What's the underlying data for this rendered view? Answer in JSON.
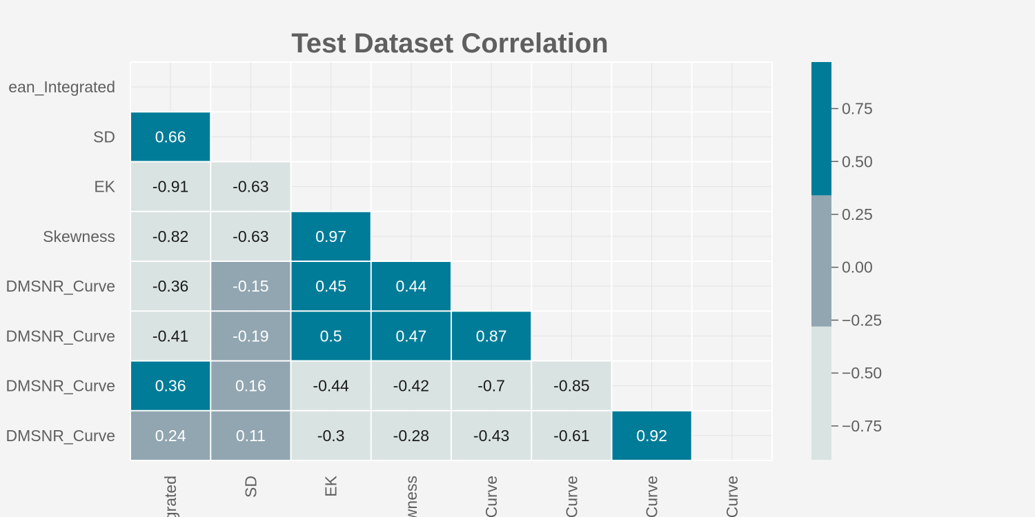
{
  "chart_data": {
    "type": "heatmap",
    "title": "Test Dataset Correlation",
    "row_labels": [
      "Mean_Integrated",
      "SD",
      "EK",
      "Skewness",
      "Mean_DMSNR_Curve",
      "SD_DMSNR_Curve",
      "EK_DMSNR_Curve",
      "Skewness_DMSNR_Curve"
    ],
    "row_labels_visible": [
      "ean_Integrated",
      "SD",
      "EK",
      "Skewness",
      "DMSNR_Curve",
      "DMSNR_Curve",
      "DMSNR_Curve",
      "DMSNR_Curve"
    ],
    "col_labels_visible": [
      "grated",
      "SD",
      "EK",
      "wness",
      "Curve",
      "Curve",
      "Curve",
      "Curve"
    ],
    "mask": "upper-triangle-including-diagonal",
    "matrix": [
      [
        null,
        null,
        null,
        null,
        null,
        null,
        null,
        null
      ],
      [
        0.66,
        null,
        null,
        null,
        null,
        null,
        null,
        null
      ],
      [
        -0.91,
        -0.63,
        null,
        null,
        null,
        null,
        null,
        null
      ],
      [
        -0.82,
        -0.63,
        0.97,
        null,
        null,
        null,
        null,
        null
      ],
      [
        -0.36,
        -0.15,
        0.45,
        0.44,
        null,
        null,
        null,
        null
      ],
      [
        -0.41,
        -0.19,
        0.5,
        0.47,
        0.87,
        null,
        null,
        null
      ],
      [
        0.36,
        0.16,
        -0.44,
        -0.42,
        -0.7,
        -0.85,
        null,
        null
      ],
      [
        0.24,
        0.11,
        -0.3,
        -0.28,
        -0.43,
        -0.61,
        0.92,
        null
      ]
    ],
    "annotations": [
      [
        null,
        null,
        null,
        null,
        null,
        null,
        null,
        null
      ],
      [
        "0.66",
        null,
        null,
        null,
        null,
        null,
        null,
        null
      ],
      [
        "-0.91",
        "-0.63",
        null,
        null,
        null,
        null,
        null,
        null
      ],
      [
        "-0.82",
        "-0.63",
        "0.97",
        null,
        null,
        null,
        null,
        null
      ],
      [
        "-0.36",
        "-0.15",
        "0.45",
        "0.44",
        null,
        null,
        null,
        null
      ],
      [
        "-0.41",
        "-0.19",
        "0.5",
        "0.47",
        "0.87",
        null,
        null,
        null
      ],
      [
        "0.36",
        "0.16",
        "-0.44",
        "-0.42",
        "-0.7",
        "-0.85",
        null,
        null
      ],
      [
        "0.24",
        "0.11",
        "-0.3",
        "-0.28",
        "-0.43",
        "-0.61",
        "0.92",
        null
      ]
    ],
    "colorbar": {
      "vmin": -0.91,
      "vmax": 0.97,
      "bins": [
        {
          "from": -0.91,
          "to": -0.28,
          "color": "#d9e3e2"
        },
        {
          "from": -0.28,
          "to": 0.34,
          "color": "#91a6b1"
        },
        {
          "from": 0.34,
          "to": 0.97,
          "color": "#007c98"
        }
      ],
      "ticks": [
        0.75,
        0.5,
        0.25,
        0.0,
        -0.25,
        -0.5,
        -0.75
      ],
      "tick_labels": [
        "0.75",
        "0.50",
        "0.25",
        "0.00",
        "−0.25",
        "−0.50",
        "−0.75"
      ]
    },
    "colors": {
      "background": "#f4f4f4",
      "cell_border": "#ffffff",
      "text_light": "#ffffff",
      "text_dark": "#1a1a1a",
      "label": "#5f5f5f"
    },
    "grid": true
  }
}
